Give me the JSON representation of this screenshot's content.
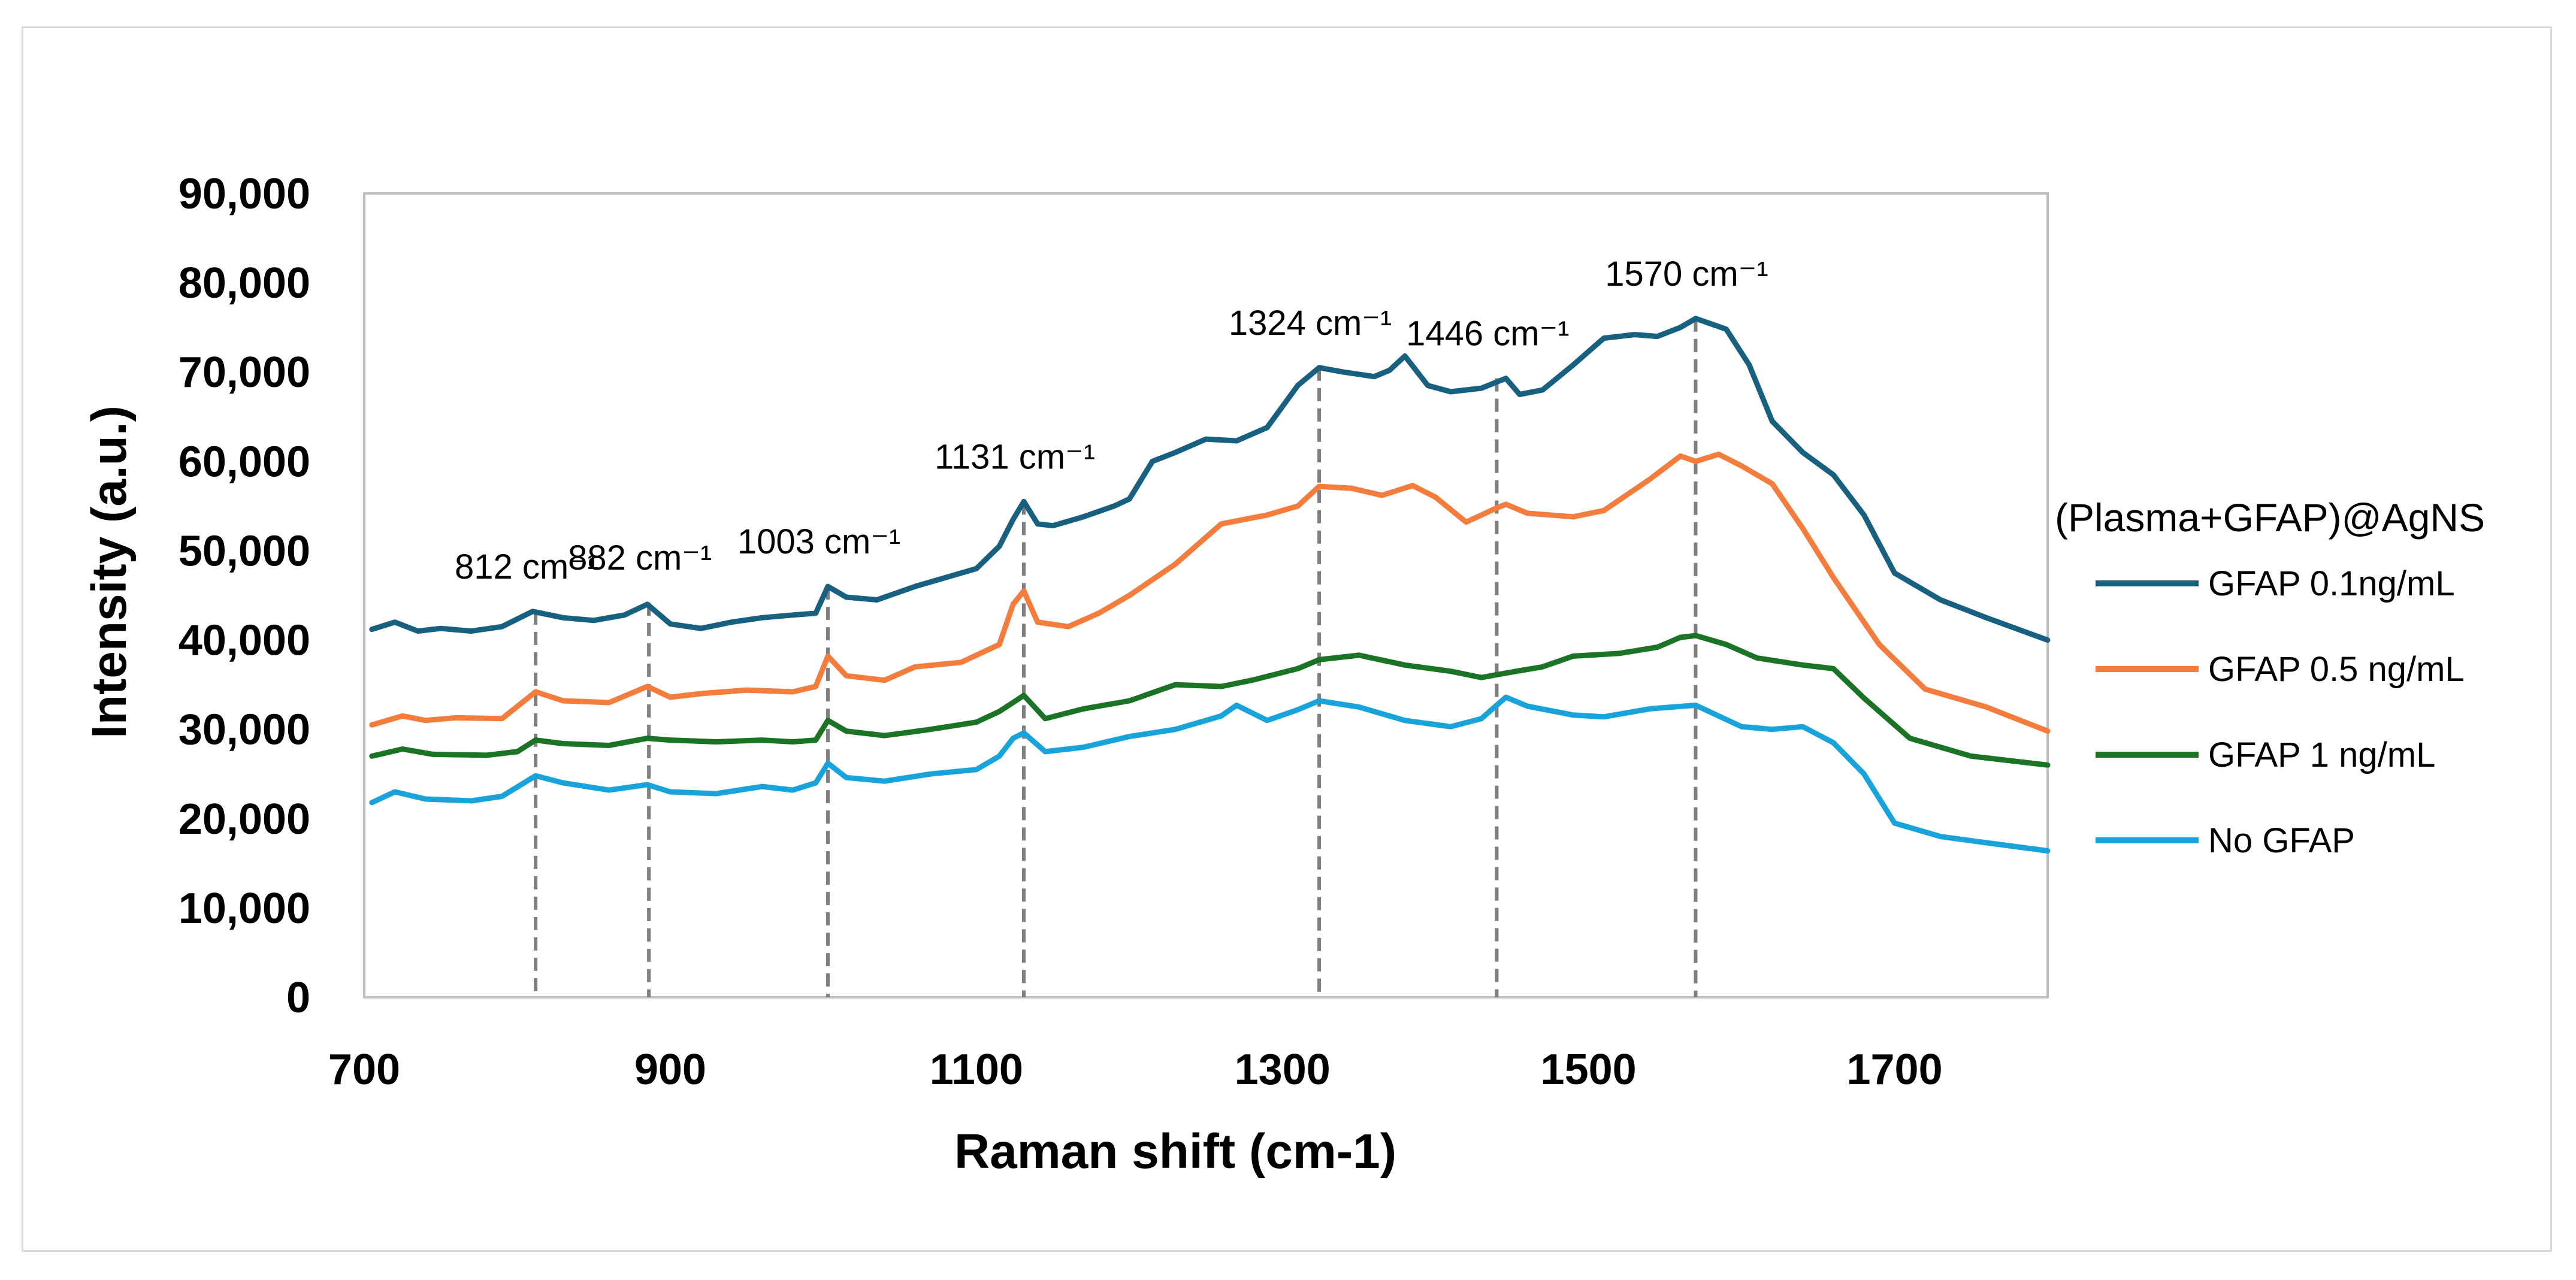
{
  "chart_data": {
    "type": "line",
    "title": "",
    "xlabel": "Raman shift (cm-1)",
    "ylabel": "Intensity (a.u.)",
    "xlim": [
      700,
      1800
    ],
    "ylim": [
      0,
      90000
    ],
    "xticks": [
      700,
      900,
      1100,
      1300,
      1500,
      1700
    ],
    "xtick_labels": [
      "700",
      "900",
      "1100",
      "1300",
      "1500",
      "1700"
    ],
    "yticks": [
      0,
      10000,
      20000,
      30000,
      40000,
      50000,
      60000,
      70000,
      80000,
      90000
    ],
    "ytick_labels": [
      "0",
      "10,000",
      "20,000",
      "30,000",
      "40,000",
      "50,000",
      "60,000",
      "70,000",
      "80,000",
      "90,000"
    ],
    "grid": false,
    "legend_title": "(Plasma+GFAP)@AgNS",
    "legend_position": "right",
    "series": [
      {
        "name": "GFAP 0.1ng/mL",
        "color": "#17607f",
        "x": [
          705,
          720,
          735,
          750,
          770,
          790,
          810,
          830,
          850,
          870,
          885,
          900,
          920,
          940,
          960,
          980,
          995,
          1003,
          1015,
          1035,
          1060,
          1080,
          1100,
          1115,
          1124,
          1131,
          1140,
          1150,
          1170,
          1190,
          1200,
          1215,
          1230,
          1250,
          1270,
          1290,
          1310,
          1324,
          1340,
          1360,
          1370,
          1380,
          1395,
          1410,
          1430,
          1446,
          1455,
          1470,
          1490,
          1510,
          1530,
          1545,
          1560,
          1570,
          1590,
          1605,
          1620,
          1640,
          1660,
          1680,
          1700,
          1730,
          1760,
          1800
        ],
        "y": [
          41200,
          42000,
          41000,
          41300,
          41000,
          41500,
          43200,
          42500,
          42200,
          42800,
          44000,
          41800,
          41300,
          42000,
          42500,
          42800,
          43000,
          46000,
          44800,
          44500,
          46000,
          47000,
          48000,
          50500,
          53500,
          55500,
          53000,
          52800,
          53800,
          55000,
          55800,
          60000,
          61000,
          62500,
          62300,
          63800,
          68500,
          70500,
          70000,
          69500,
          70200,
          71800,
          68500,
          67800,
          68200,
          69300,
          67500,
          68000,
          70800,
          73800,
          74200,
          74000,
          75000,
          76000,
          74800,
          70800,
          64500,
          61000,
          58500,
          54000,
          47500,
          44500,
          42500,
          40000
        ]
      },
      {
        "name": "GFAP 0.5 ng/mL",
        "color": "#f47c3c",
        "x": [
          705,
          725,
          740,
          760,
          790,
          812,
          830,
          860,
          885,
          900,
          920,
          950,
          980,
          995,
          1003,
          1015,
          1040,
          1060,
          1090,
          1115,
          1124,
          1131,
          1140,
          1160,
          1180,
          1200,
          1230,
          1260,
          1290,
          1310,
          1324,
          1345,
          1365,
          1385,
          1400,
          1420,
          1440,
          1446,
          1460,
          1490,
          1510,
          1540,
          1560,
          1570,
          1585,
          1600,
          1620,
          1640,
          1660,
          1690,
          1720,
          1760,
          1800
        ],
        "y": [
          30500,
          31500,
          31000,
          31300,
          31200,
          34200,
          33200,
          33000,
          34800,
          33600,
          34000,
          34400,
          34200,
          34800,
          38200,
          36000,
          35500,
          37000,
          37500,
          39500,
          44000,
          45500,
          42000,
          41500,
          43000,
          45000,
          48500,
          53000,
          54000,
          55000,
          57200,
          57000,
          56200,
          57300,
          56000,
          53200,
          54800,
          55200,
          54200,
          53800,
          54500,
          58000,
          60600,
          60000,
          60800,
          59500,
          57500,
          52500,
          47000,
          39500,
          34500,
          32500,
          29800
        ]
      },
      {
        "name": "GFAP 1 ng/mL",
        "color": "#1b7326",
        "x": [
          705,
          725,
          745,
          780,
          800,
          812,
          830,
          860,
          885,
          900,
          930,
          960,
          980,
          995,
          1003,
          1015,
          1040,
          1070,
          1100,
          1115,
          1124,
          1131,
          1145,
          1170,
          1200,
          1230,
          1260,
          1280,
          1310,
          1324,
          1350,
          1380,
          1410,
          1430,
          1446,
          1470,
          1490,
          1520,
          1545,
          1560,
          1570,
          1590,
          1610,
          1640,
          1660,
          1680,
          1710,
          1750,
          1800
        ],
        "y": [
          27000,
          27800,
          27200,
          27100,
          27500,
          28800,
          28400,
          28200,
          29000,
          28800,
          28600,
          28800,
          28600,
          28800,
          31000,
          29800,
          29300,
          30000,
          30800,
          32000,
          33000,
          33800,
          31200,
          32300,
          33200,
          35000,
          34800,
          35500,
          36800,
          37800,
          38300,
          37200,
          36500,
          35800,
          36300,
          37000,
          38200,
          38500,
          39200,
          40300,
          40500,
          39500,
          38000,
          37200,
          36800,
          33500,
          29000,
          27000,
          26000
        ]
      },
      {
        "name": "No GFAP",
        "color": "#18a4db",
        "x": [
          705,
          720,
          740,
          770,
          790,
          812,
          830,
          860,
          885,
          900,
          930,
          960,
          980,
          995,
          1003,
          1015,
          1040,
          1070,
          1100,
          1115,
          1124,
          1131,
          1145,
          1170,
          1200,
          1230,
          1260,
          1270,
          1290,
          1310,
          1324,
          1350,
          1380,
          1410,
          1430,
          1446,
          1460,
          1490,
          1510,
          1540,
          1570,
          1600,
          1620,
          1640,
          1660,
          1680,
          1700,
          1730,
          1760,
          1800
        ],
        "y": [
          21800,
          23000,
          22200,
          22000,
          22500,
          24800,
          24000,
          23200,
          23800,
          23000,
          22800,
          23600,
          23200,
          24000,
          26200,
          24600,
          24200,
          25000,
          25500,
          27000,
          29000,
          29600,
          27500,
          28000,
          29200,
          30000,
          31500,
          32700,
          31000,
          32200,
          33200,
          32500,
          31000,
          30300,
          31200,
          33600,
          32600,
          31600,
          31400,
          32300,
          32700,
          30300,
          30000,
          30300,
          28500,
          25000,
          19500,
          18000,
          17300,
          16400
        ]
      }
    ],
    "annotations": [
      {
        "label": "812 cm⁻¹",
        "x": 812,
        "peak": 43200
      },
      {
        "label": "882 cm⁻¹",
        "x": 886,
        "peak": 44200
      },
      {
        "label": "1003 cm⁻¹",
        "x": 1003,
        "peak": 46000
      },
      {
        "label": "1131 cm⁻¹",
        "x": 1131,
        "peak": 55500
      },
      {
        "label": "1324 cm⁻¹",
        "x": 1324,
        "peak": 70500
      },
      {
        "label": "1446 cm⁻¹",
        "x": 1440,
        "peak": 69300
      },
      {
        "label": "1570 cm⁻¹",
        "x": 1570,
        "peak": 76000
      }
    ]
  }
}
